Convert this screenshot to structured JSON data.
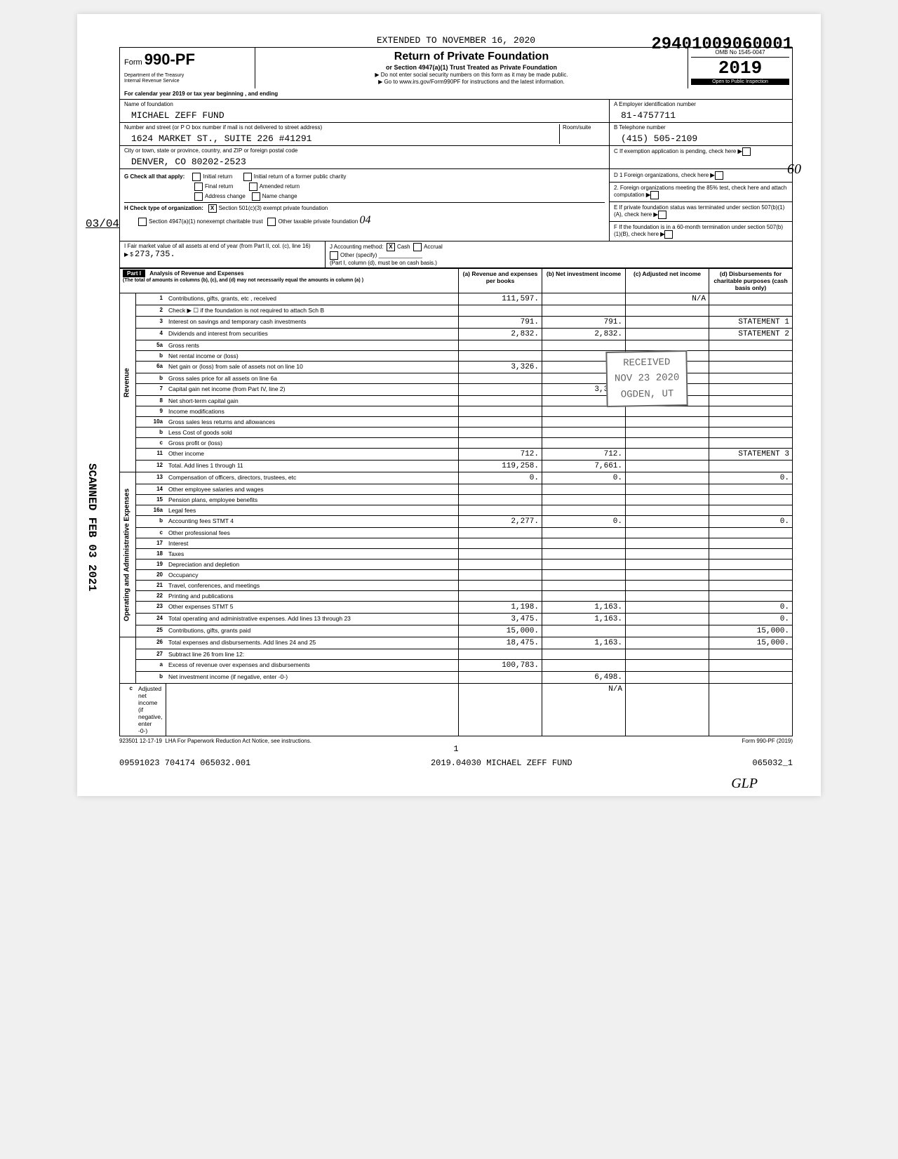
{
  "dln": "29401009060001",
  "extended_line": "EXTENDED TO NOVEMBER 16, 2020",
  "form": {
    "number_prefix": "Form",
    "number": "990-PF",
    "dept1": "Department of the Treasury",
    "dept2": "Internal Revenue Service",
    "title": "Return of Private Foundation",
    "sub": "or Section 4947(a)(1) Trust Treated as Private Foundation",
    "sub2a": "▶ Do not enter social security numbers on this form as it may be made public.",
    "sub2b": "▶ Go to www.irs.gov/Form990PF for instructions and the latest information.",
    "omb": "OMB No 1545-0047",
    "year": "2019",
    "open": "Open to Public Inspection"
  },
  "cal_year": "For calendar year 2019 or tax year beginning                                                      , and ending",
  "entity": {
    "name_label": "Name of foundation",
    "name": "MICHAEL ZEFF FUND",
    "addr_label": "Number and street (or P O  box number if mail is not delivered to street address)",
    "room_label": "Room/suite",
    "addr": "1624 MARKET ST., SUITE 226 #41291",
    "city_label": "City or town, state or province, country, and ZIP or foreign postal code",
    "city": "DENVER, CO   80202-2523",
    "a_label": "A Employer identification number",
    "a_val": "81-4757711",
    "b_label": "B Telephone number",
    "b_val": "(415) 505-2109",
    "c_label": "C  If exemption application is pending, check here"
  },
  "g": {
    "label": "G  Check all that apply:",
    "initial": "Initial return",
    "initial_former": "Initial return of a former public charity",
    "final": "Final return",
    "amended": "Amended return",
    "address": "Address change",
    "namechg": "Name change"
  },
  "h": {
    "label": "H  Check type of organization:",
    "c3": "Section 501(c)(3) exempt private foundation",
    "c3_x": "X",
    "trust": "Section 4947(a)(1) nonexempt charitable trust",
    "other": "Other taxable private foundation"
  },
  "d": {
    "d1": "D 1  Foreign organizations, check here",
    "d2": "2. Foreign organizations meeting the 85% test, check here and attach computation",
    "e": "E  If private foundation status was terminated under section 507(b)(1)(A), check here",
    "f": "F  If the foundation is in a 60-month termination under section 507(b)(1)(B), check here"
  },
  "ij": {
    "i_label": "I  Fair market value of all assets at end of year (from Part II, col. (c), line 16)",
    "i_val": "273,735.",
    "j_label": "J  Accounting method:",
    "cash": "Cash",
    "cash_x": "X",
    "accrual": "Accrual",
    "other": "Other (specify)",
    "note": "(Part I, column (d), must be on cash basis.)"
  },
  "part1": {
    "title": "Analysis of Revenue and Expenses",
    "sub": "(The total of amounts in columns (b), (c), and (d) may not necessarily equal the amounts in column (a) )",
    "cols": {
      "a": "(a) Revenue and expenses per books",
      "b": "(b) Net investment income",
      "c": "(c) Adjusted net income",
      "d": "(d) Disbursements for charitable purposes (cash basis only)"
    }
  },
  "rows": [
    {
      "n": "1",
      "d": "Contributions, gifts, grants, etc , received",
      "a": "111,597.",
      "b": "",
      "c": "N/A",
      "dd": ""
    },
    {
      "n": "2",
      "d": "Check ▶ ☐  if the foundation is not required to attach Sch  B",
      "a": "",
      "b": "",
      "c": "",
      "dd": ""
    },
    {
      "n": "3",
      "d": "Interest on savings and temporary cash investments",
      "a": "791.",
      "b": "791.",
      "c": "",
      "dd": "STATEMENT  1"
    },
    {
      "n": "4",
      "d": "Dividends and interest from securities",
      "a": "2,832.",
      "b": "2,832.",
      "c": "",
      "dd": "STATEMENT  2"
    },
    {
      "n": "5a",
      "d": "Gross rents",
      "a": "",
      "b": "",
      "c": "",
      "dd": ""
    },
    {
      "n": "b",
      "d": "Net rental income or (loss)",
      "a": "",
      "b": "",
      "c": "",
      "dd": ""
    },
    {
      "n": "6a",
      "d": "Net gain or (loss) from sale of assets not on line 10",
      "a": "3,326.",
      "b": "",
      "c": "",
      "dd": ""
    },
    {
      "n": "b",
      "d": "Gross sales price for all assets on line 6a",
      "a": "",
      "b": "",
      "c": "",
      "dd": ""
    },
    {
      "n": "7",
      "d": "Capital gain net income (from Part IV, line 2)",
      "a": "",
      "b": "3,326.",
      "c": "",
      "dd": ""
    },
    {
      "n": "8",
      "d": "Net short-term capital gain",
      "a": "",
      "b": "",
      "c": "",
      "dd": ""
    },
    {
      "n": "9",
      "d": "Income modifications",
      "a": "",
      "b": "",
      "c": "",
      "dd": ""
    },
    {
      "n": "10a",
      "d": "Gross sales less returns and allowances",
      "a": "",
      "b": "",
      "c": "",
      "dd": ""
    },
    {
      "n": "b",
      "d": "Less  Cost of goods sold",
      "a": "",
      "b": "",
      "c": "",
      "dd": ""
    },
    {
      "n": "c",
      "d": "Gross profit or (loss)",
      "a": "",
      "b": "",
      "c": "",
      "dd": ""
    },
    {
      "n": "11",
      "d": "Other income",
      "a": "712.",
      "b": "712.",
      "c": "",
      "dd": "STATEMENT  3"
    },
    {
      "n": "12",
      "d": "Total. Add lines 1 through 11",
      "a": "119,258.",
      "b": "7,661.",
      "c": "",
      "dd": ""
    },
    {
      "n": "13",
      "d": "Compensation of officers, directors, trustees, etc",
      "a": "0.",
      "b": "0.",
      "c": "",
      "dd": "0."
    },
    {
      "n": "14",
      "d": "Other employee salaries and wages",
      "a": "",
      "b": "",
      "c": "",
      "dd": ""
    },
    {
      "n": "15",
      "d": "Pension plans, employee benefits",
      "a": "",
      "b": "",
      "c": "",
      "dd": ""
    },
    {
      "n": "16a",
      "d": "Legal fees",
      "a": "",
      "b": "",
      "c": "",
      "dd": ""
    },
    {
      "n": "b",
      "d": "Accounting fees                    STMT  4",
      "a": "2,277.",
      "b": "0.",
      "c": "",
      "dd": "0."
    },
    {
      "n": "c",
      "d": "Other professional fees",
      "a": "",
      "b": "",
      "c": "",
      "dd": ""
    },
    {
      "n": "17",
      "d": "Interest",
      "a": "",
      "b": "",
      "c": "",
      "dd": ""
    },
    {
      "n": "18",
      "d": "Taxes",
      "a": "",
      "b": "",
      "c": "",
      "dd": ""
    },
    {
      "n": "19",
      "d": "Depreciation and depletion",
      "a": "",
      "b": "",
      "c": "",
      "dd": ""
    },
    {
      "n": "20",
      "d": "Occupancy",
      "a": "",
      "b": "",
      "c": "",
      "dd": ""
    },
    {
      "n": "21",
      "d": "Travel, conferences, and meetings",
      "a": "",
      "b": "",
      "c": "",
      "dd": ""
    },
    {
      "n": "22",
      "d": "Printing and publications",
      "a": "",
      "b": "",
      "c": "",
      "dd": ""
    },
    {
      "n": "23",
      "d": "Other expenses                     STMT  5",
      "a": "1,198.",
      "b": "1,163.",
      "c": "",
      "dd": "0."
    },
    {
      "n": "24",
      "d": "Total operating and administrative expenses. Add lines 13 through 23",
      "a": "3,475.",
      "b": "1,163.",
      "c": "",
      "dd": "0."
    },
    {
      "n": "25",
      "d": "Contributions, gifts, grants paid",
      "a": "15,000.",
      "b": "",
      "c": "",
      "dd": "15,000."
    },
    {
      "n": "26",
      "d": "Total expenses and disbursements. Add lines 24 and 25",
      "a": "18,475.",
      "b": "1,163.",
      "c": "",
      "dd": "15,000."
    },
    {
      "n": "27",
      "d": "Subtract line 26 from line 12:",
      "a": "",
      "b": "",
      "c": "",
      "dd": ""
    },
    {
      "n": "a",
      "d": "Excess of revenue over expenses and disbursements",
      "a": "100,783.",
      "b": "",
      "c": "",
      "dd": ""
    },
    {
      "n": "b",
      "d": "Net investment income (if negative, enter -0-)",
      "a": "",
      "b": "6,498.",
      "c": "",
      "dd": ""
    },
    {
      "n": "c",
      "d": "Adjusted net income (if negative, enter -0-)",
      "a": "",
      "b": "",
      "c": "N/A",
      "dd": ""
    }
  ],
  "vlabels": {
    "rev": "Revenue",
    "exp": "Operating and Administrative Expenses"
  },
  "footer": {
    "lha": "LHA  For Paperwork Reduction Act Notice, see instructions.",
    "code": "923501  12-17-19",
    "form": "Form 990-PF (2019)",
    "pageno": "1"
  },
  "bottom": {
    "left": "09591023 704174 065032.001",
    "mid": "2019.04030 MICHAEL ZEFF FUND",
    "right": "065032_1"
  },
  "side_scanned": "SCANNED FEB 03 2021",
  "side_frac_top": "03",
  "side_frac_bot": "04",
  "received": {
    "l1": "RECEIVED",
    "l2": "NOV 23 2020",
    "l3": "OGDEN, UT"
  },
  "hand_04": "04",
  "hand_glp": "GLP",
  "hand_60": "60"
}
